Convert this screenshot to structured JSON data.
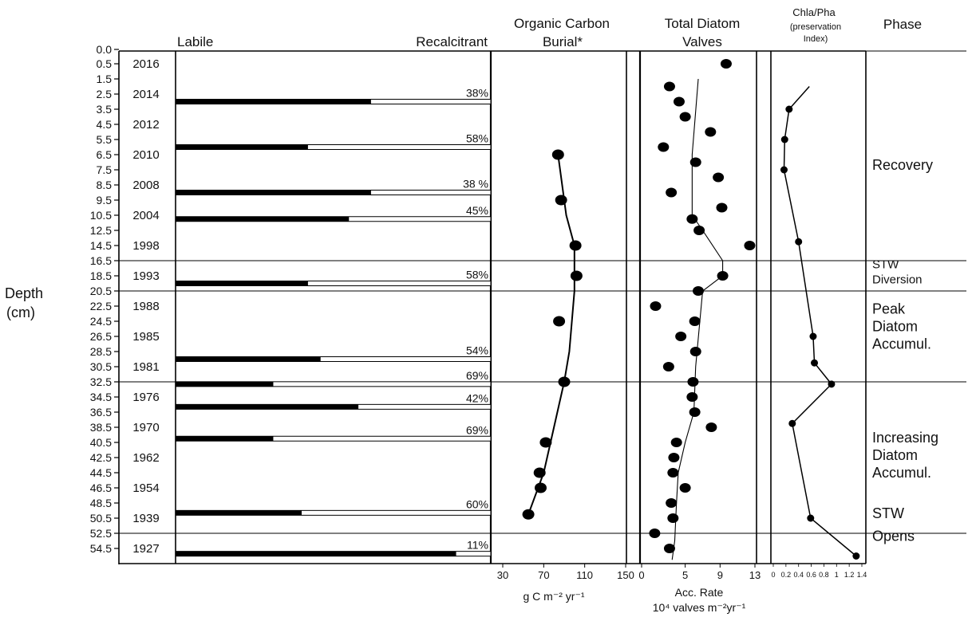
{
  "chart_data": {
    "type": "multi-panel-stratigraphic",
    "depth_axis": {
      "label_line1": "Depth",
      "label_line2": "(cm)",
      "range": [
        0,
        56.5
      ],
      "ticks": [
        "0.0",
        "0.5",
        "1.5",
        "2.5",
        "3.5",
        "4.5",
        "5.5",
        "6.5",
        "7.5",
        "8.5",
        "9.5",
        "10.5",
        "12.5",
        "14.5",
        "16.5",
        "18.5",
        "20.5",
        "22.5",
        "24.5",
        "26.5",
        "28.5",
        "30.5",
        "32.5",
        "34.5",
        "36.5",
        "38.5",
        "40.5",
        "42.5",
        "44.5",
        "46.5",
        "48.5",
        "50.5",
        "52.5",
        "54.5"
      ]
    },
    "years": [
      {
        "label": "2016",
        "depth": 0.5
      },
      {
        "label": "2014",
        "depth": 2.5
      },
      {
        "label": "2012",
        "depth": 4.5
      },
      {
        "label": "2010",
        "depth": 6.5
      },
      {
        "label": "2008",
        "depth": 8.5
      },
      {
        "label": "2004",
        "depth": 10.5
      },
      {
        "label": "1998",
        "depth": 14.5
      },
      {
        "label": "1993",
        "depth": 18.5
      },
      {
        "label": "1988",
        "depth": 22.5
      },
      {
        "label": "1985",
        "depth": 26.5
      },
      {
        "label": "1981",
        "depth": 30.5
      },
      {
        "label": "1976",
        "depth": 34.5
      },
      {
        "label": "1970",
        "depth": 38.5
      },
      {
        "label": "1962",
        "depth": 42.5
      },
      {
        "label": "1954",
        "depth": 46.5
      },
      {
        "label": "1939",
        "depth": 50.5
      },
      {
        "label": "1927",
        "depth": 54.5
      }
    ],
    "labile_panel": {
      "left_label": "Labile",
      "right_label": "Recalcitrant",
      "bars": [
        {
          "depth": 3.0,
          "labile_fraction": 0.62,
          "pct_label": "38%"
        },
        {
          "depth": 6.0,
          "labile_fraction": 0.42,
          "pct_label": "58%"
        },
        {
          "depth": 9.0,
          "labile_fraction": 0.62,
          "pct_label": "38 %"
        },
        {
          "depth": 11.0,
          "labile_fraction": 0.55,
          "pct_label": "45%"
        },
        {
          "depth": 19.5,
          "labile_fraction": 0.42,
          "pct_label": "58%"
        },
        {
          "depth": 29.5,
          "labile_fraction": 0.46,
          "pct_label": "54%"
        },
        {
          "depth": 32.8,
          "labile_fraction": 0.31,
          "pct_label": "69%"
        },
        {
          "depth": 35.8,
          "labile_fraction": 0.58,
          "pct_label": "42%"
        },
        {
          "depth": 40.0,
          "labile_fraction": 0.31,
          "pct_label": "69%"
        },
        {
          "depth": 49.8,
          "labile_fraction": 0.4,
          "pct_label": "60%"
        },
        {
          "depth": 55.2,
          "labile_fraction": 0.89,
          "pct_label": "11%"
        }
      ]
    },
    "organic_carbon": {
      "title_line1": "Organic Carbon",
      "title_line2": "Burial*",
      "unit_label": "g C m⁻² yr⁻¹",
      "x_range": [
        30,
        150
      ],
      "x_ticks": [
        30,
        70,
        110,
        150
      ],
      "points": [
        {
          "value": 84,
          "depth": 6.5
        },
        {
          "value": 87,
          "depth": 9.5
        },
        {
          "value": 101,
          "depth": 14.5
        },
        {
          "value": 102,
          "depth": 18.5
        },
        {
          "value": 85,
          "depth": 24.5
        },
        {
          "value": 90,
          "depth": 32.5
        },
        {
          "value": 72,
          "depth": 40.5
        },
        {
          "value": 66,
          "depth": 44.5
        },
        {
          "value": 67,
          "depth": 46.5
        },
        {
          "value": 55,
          "depth": 50.0
        }
      ],
      "trend": [
        {
          "value": 84,
          "depth": 6.5
        },
        {
          "value": 92,
          "depth": 10.5
        },
        {
          "value": 100,
          "depth": 14.5
        },
        {
          "value": 100,
          "depth": 20.5
        },
        {
          "value": 95,
          "depth": 28.5
        },
        {
          "value": 90,
          "depth": 32.5
        },
        {
          "value": 80,
          "depth": 38.5
        },
        {
          "value": 70,
          "depth": 44.5
        },
        {
          "value": 55,
          "depth": 50.0
        }
      ]
    },
    "diatom": {
      "title_line1": "Total Diatom",
      "title_line2": "Valves",
      "unit_line1": "Acc. Rate",
      "unit_line2": "10⁴ valves m⁻²yr⁻¹",
      "x_range": [
        0,
        13
      ],
      "x_ticks": [
        0,
        5,
        9,
        13
      ],
      "points": [
        {
          "value": 9.7,
          "depth": 0.5
        },
        {
          "value": 3.2,
          "depth": 2.0
        },
        {
          "value": 4.3,
          "depth": 3.0
        },
        {
          "value": 5.0,
          "depth": 4.0
        },
        {
          "value": 7.9,
          "depth": 5.0
        },
        {
          "value": 2.5,
          "depth": 6.0
        },
        {
          "value": 6.2,
          "depth": 7.0
        },
        {
          "value": 8.8,
          "depth": 8.0
        },
        {
          "value": 3.4,
          "depth": 9.0
        },
        {
          "value": 9.2,
          "depth": 10.0
        },
        {
          "value": 5.8,
          "depth": 11.0
        },
        {
          "value": 6.6,
          "depth": 12.5
        },
        {
          "value": 12.4,
          "depth": 14.5
        },
        {
          "value": 9.3,
          "depth": 18.5
        },
        {
          "value": 6.5,
          "depth": 20.5
        },
        {
          "value": 1.6,
          "depth": 22.5
        },
        {
          "value": 6.1,
          "depth": 24.5
        },
        {
          "value": 4.5,
          "depth": 26.5
        },
        {
          "value": 6.2,
          "depth": 28.5
        },
        {
          "value": 3.1,
          "depth": 30.5
        },
        {
          "value": 5.9,
          "depth": 32.5
        },
        {
          "value": 5.8,
          "depth": 34.5
        },
        {
          "value": 6.1,
          "depth": 36.5
        },
        {
          "value": 8.0,
          "depth": 38.5
        },
        {
          "value": 4.0,
          "depth": 40.5
        },
        {
          "value": 3.7,
          "depth": 42.5
        },
        {
          "value": 3.6,
          "depth": 44.5
        },
        {
          "value": 5.0,
          "depth": 46.5
        },
        {
          "value": 3.4,
          "depth": 48.5
        },
        {
          "value": 3.6,
          "depth": 50.5
        },
        {
          "value": 1.5,
          "depth": 52.5
        },
        {
          "value": 3.2,
          "depth": 54.5
        }
      ],
      "trend": [
        {
          "value": 6.5,
          "depth": 1.5
        },
        {
          "value": 5.8,
          "depth": 6.5
        },
        {
          "value": 5.8,
          "depth": 10.5
        },
        {
          "value": 7.0,
          "depth": 12.5
        },
        {
          "value": 9.3,
          "depth": 16.5
        },
        {
          "value": 9.3,
          "depth": 18.5
        },
        {
          "value": 7.0,
          "depth": 20.5
        },
        {
          "value": 6.2,
          "depth": 30.5
        },
        {
          "value": 6.0,
          "depth": 36.5
        },
        {
          "value": 5.0,
          "depth": 40.5
        },
        {
          "value": 4.2,
          "depth": 44.5
        },
        {
          "value": 4.0,
          "depth": 48.5
        },
        {
          "value": 3.8,
          "depth": 53.5
        },
        {
          "value": 3.5,
          "depth": 56.0
        }
      ]
    },
    "chla_pha": {
      "title_line1": "Chla/Pha",
      "title_line2": "(preservation",
      "title_line3": "Index)",
      "x_range": [
        0,
        1.4
      ],
      "x_tick_labels": [
        "0",
        "0.2",
        "0.4",
        "0.6",
        "0.8",
        "1",
        "1.2",
        "1.4"
      ],
      "x_tick_values": [
        0,
        0.2,
        0.4,
        0.6,
        0.8,
        1.0,
        1.2,
        1.4
      ],
      "points": [
        {
          "value": 0.25,
          "depth": 3.5
        },
        {
          "value": 0.18,
          "depth": 5.5
        },
        {
          "value": 0.17,
          "depth": 7.5
        },
        {
          "value": 0.4,
          "depth": 14.0
        },
        {
          "value": 0.63,
          "depth": 26.5
        },
        {
          "value": 0.65,
          "depth": 30.0
        },
        {
          "value": 0.92,
          "depth": 32.8
        },
        {
          "value": 0.3,
          "depth": 38.0
        },
        {
          "value": 0.59,
          "depth": 50.5
        },
        {
          "value": 1.31,
          "depth": 55.5
        }
      ],
      "line_points": [
        {
          "value": 0.57,
          "depth": 2.0
        },
        {
          "value": 0.25,
          "depth": 3.5
        },
        {
          "value": 0.18,
          "depth": 5.5
        },
        {
          "value": 0.17,
          "depth": 7.5
        },
        {
          "value": 0.4,
          "depth": 14.0
        },
        {
          "value": 0.63,
          "depth": 26.5
        },
        {
          "value": 0.65,
          "depth": 30.0
        },
        {
          "value": 0.92,
          "depth": 32.8
        },
        {
          "value": 0.3,
          "depth": 38.0
        },
        {
          "value": 0.59,
          "depth": 50.5
        },
        {
          "value": 1.31,
          "depth": 55.5
        }
      ]
    },
    "phases": {
      "title": "Phase",
      "boundaries": [
        16.5,
        20.5,
        32.5,
        52.5
      ],
      "labels": [
        {
          "lines": [
            "Recovery"
          ],
          "depth_anchor": 7.5
        },
        {
          "lines": [
            "STW",
            "Diversion"
          ],
          "depth_anchor": 17.5
        },
        {
          "lines": [
            "Peak",
            "Diatom",
            "Accumul."
          ],
          "depth_anchor": 23.5
        },
        {
          "lines": [
            "Increasing",
            "Diatom",
            "Accumul."
          ],
          "depth_anchor": 40.5
        },
        {
          "lines": [
            "STW"
          ],
          "depth_anchor": 50.5
        },
        {
          "lines": [
            "Opens"
          ],
          "depth_anchor": 53.5
        }
      ]
    }
  }
}
